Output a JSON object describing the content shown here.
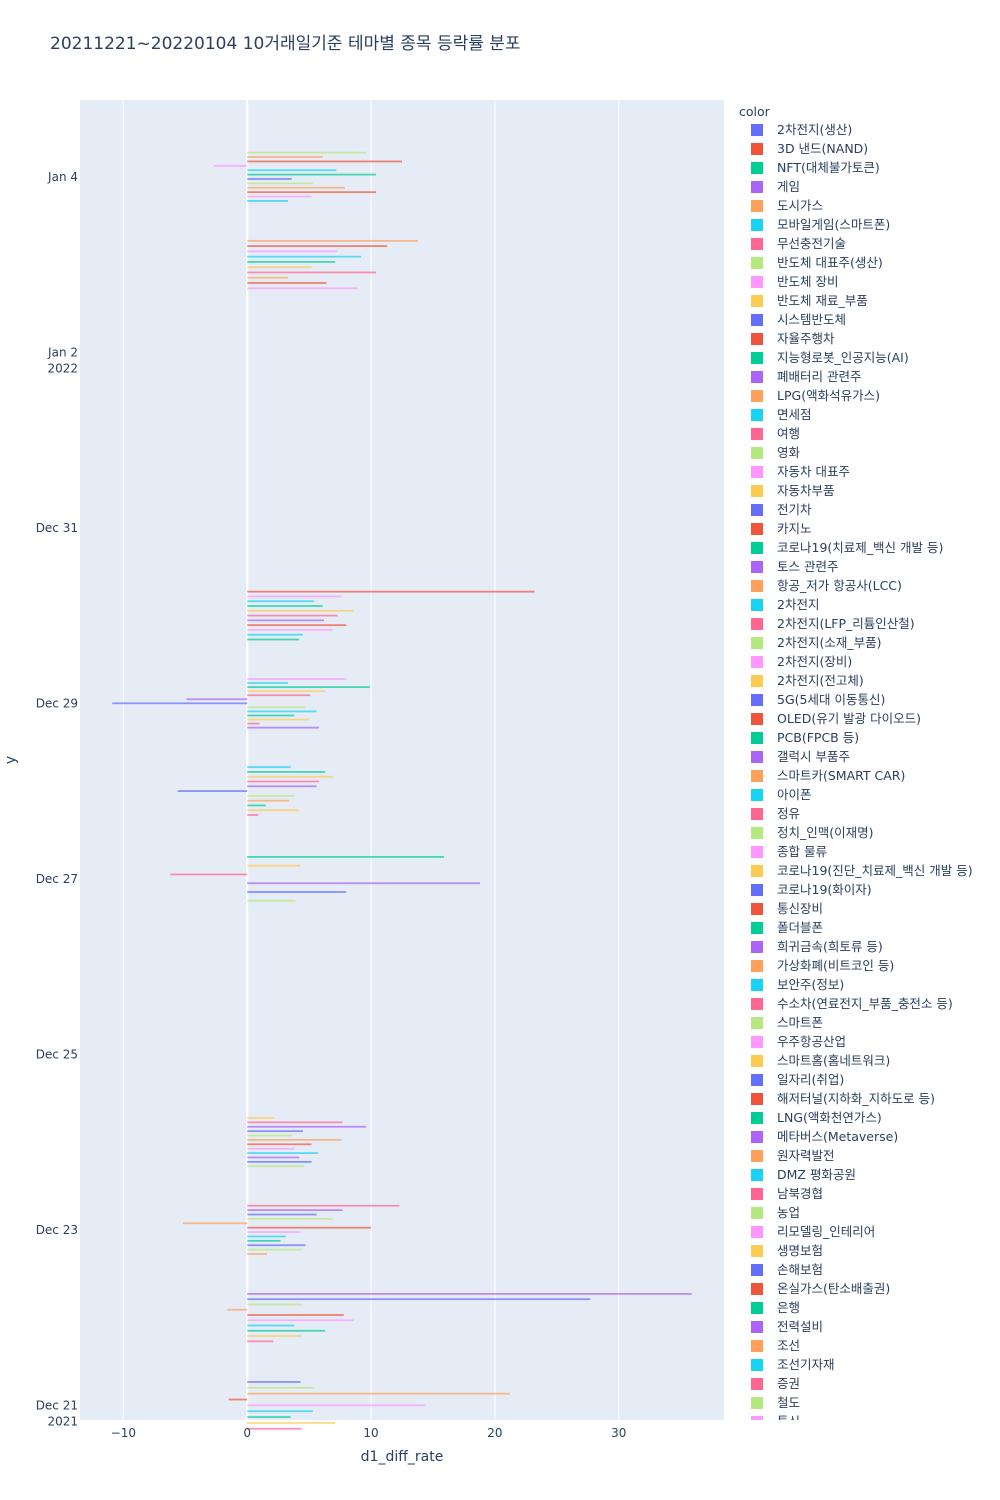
{
  "chart_data": {
    "type": "bar",
    "orientation": "horizontal",
    "barmode": "group",
    "title": "20211221~20220104 10거래일기준 테마별 종목 등락률 분포",
    "xlabel": "d1_diff_rate",
    "ylabel": "y",
    "xlim": [
      -13.5,
      38.5
    ],
    "ylim": [
      "2021-12-20T20:00",
      "2022-01-04T21:00"
    ],
    "x_ticks": [
      -10,
      0,
      10,
      20,
      30
    ],
    "y_ticks": [
      {
        "date": "2021-12-21",
        "label": "Dec 21",
        "sublabel": "2021"
      },
      {
        "date": "2021-12-23",
        "label": "Dec 23",
        "sublabel": ""
      },
      {
        "date": "2021-12-25",
        "label": "Dec 25",
        "sublabel": ""
      },
      {
        "date": "2021-12-27",
        "label": "Dec 27",
        "sublabel": ""
      },
      {
        "date": "2021-12-29",
        "label": "Dec 29",
        "sublabel": ""
      },
      {
        "date": "2021-12-31",
        "label": "Dec 31",
        "sublabel": ""
      },
      {
        "date": "2022-01-02",
        "label": "Jan 2",
        "sublabel": "2022"
      },
      {
        "date": "2022-01-04",
        "label": "Jan 4",
        "sublabel": ""
      }
    ],
    "grid": true,
    "legend_title": "color",
    "legend_position": "right",
    "palette": [
      "#636efa",
      "#EF553B",
      "#00cc96",
      "#ab63fa",
      "#FFA15A",
      "#19d3f3",
      "#FF6692",
      "#B6E880",
      "#FF97FF",
      "#FECB52"
    ],
    "legend": [
      "2차전지(생산)",
      "3D 낸드(NAND)",
      "NFT(대체불가토큰)",
      "게임",
      "도시가스",
      "모바일게임(스마트폰)",
      "무선충전기술",
      "반도체 대표주(생산)",
      "반도체 장비",
      "반도체 재료_부품",
      "시스템반도체",
      "자율주행차",
      "지능형로봇_인공지능(AI)",
      "폐배터리 관련주",
      "LPG(액화석유가스)",
      "면세점",
      "여행",
      "영화",
      "자동차 대표주",
      "자동차부품",
      "전기차",
      "카지노",
      "코로나19(치료제_백신 개발 등)",
      "토스 관련주",
      "항공_저가 항공사(LCC)",
      "2차전지",
      "2차전지(LFP_리튬인산철)",
      "2차전지(소재_부품)",
      "2차전지(장비)",
      "2차전지(전고체)",
      "5G(5세대 이동통신)",
      "OLED(유기 발광 다이오드)",
      "PCB(FPCB 등)",
      "갤럭시 부품주",
      "스마트카(SMART CAR)",
      "아이폰",
      "정유",
      "정치_인맥(이재명)",
      "종합 물류",
      "코로나19(진단_치료제_백신 개발 등)",
      "코로나19(화이자)",
      "통신장비",
      "폴더블폰",
      "희귀금속(희토류 등)",
      "가상화폐(비트코인 등)",
      "보안주(정보)",
      "수소차(연료전지_부품_충전소 등)",
      "스마트폰",
      "우주항공산업",
      "스마트홈(홈네트워크)",
      "일자리(취업)",
      "해저터널(지하화_지하도로 등)",
      "LNG(액화천연가스)",
      "메타버스(Metaverse)",
      "원자력발전",
      "DMZ 평화공원",
      "남북경협",
      "농업",
      "리모델링_인테리어",
      "생명보험",
      "손해보험",
      "온실가스(탄소배출권)",
      "은행",
      "전력설비",
      "조선",
      "조선기자재",
      "증권",
      "철도",
      "통신"
    ],
    "days": [
      "2021-12-21",
      "2021-12-22",
      "2021-12-23",
      "2021-12-24",
      "2021-12-27",
      "2021-12-28",
      "2021-12-29",
      "2021-12-30",
      "2022-01-03",
      "2022-01-04"
    ],
    "day_values": [
      [
        4.3,
        5.4,
        21.2,
        -1.5,
        14.4,
        5.3,
        3.5,
        7.1,
        4.4
      ],
      [
        35.9,
        27.7,
        4.4,
        -1.6,
        7.8,
        8.6,
        3.8,
        6.3,
        4.4,
        2.1
      ],
      [
        12.3,
        7.7,
        5.6,
        6.9,
        -5.2,
        10.0,
        4.3,
        3.1,
        2.7,
        4.7,
        4.4,
        1.6
      ],
      [
        2.2,
        7.7,
        9.6,
        4.5,
        3.6,
        7.6,
        5.2,
        3.8,
        5.7,
        4.2,
        5.2,
        4.6
      ],
      [
        15.9,
        4.3,
        -6.2,
        18.8,
        8.0,
        3.9
      ],
      [
        3.5,
        6.3,
        6.9,
        5.8,
        5.6,
        -5.6,
        3.8,
        3.4,
        1.5,
        4.2,
        0.9
      ],
      [
        8.0,
        3.3,
        9.9,
        6.3,
        5.1,
        -4.9,
        -10.9,
        4.7,
        5.6,
        3.8,
        5.0,
        1.0,
        5.8
      ],
      [
        23.2,
        7.6,
        5.4,
        6.1,
        8.6,
        7.3,
        6.2,
        8.0,
        6.9,
        4.5,
        4.2
      ],
      [
        13.8,
        11.3,
        7.3,
        9.2,
        7.1,
        5.2,
        10.4,
        3.3,
        6.4,
        8.9
      ],
      [
        9.6,
        6.1,
        12.5,
        -2.7,
        7.2,
        10.4,
        3.6,
        5.3,
        7.9,
        10.4,
        5.2,
        3.3
      ]
    ]
  }
}
